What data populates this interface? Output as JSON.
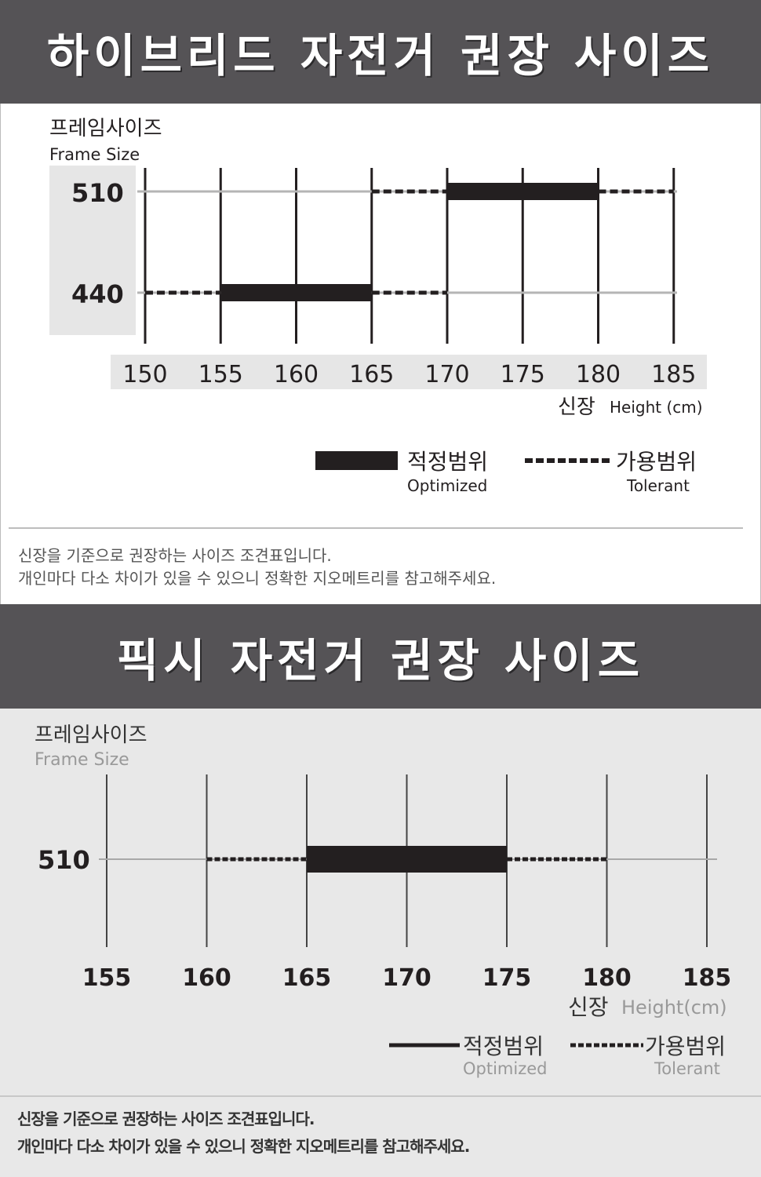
{
  "sections": [
    {
      "title": "하이브리드 자전거 권장 사이즈",
      "notes": [
        "신장을 기준으로 권장하는 사이즈 조견표입니다.",
        "개인마다 다소 차이가 있을 수 있으니 정확한 지오메트리를 참고해주세요."
      ]
    },
    {
      "title": "픽시 자전거 권장 사이즈",
      "notes": [
        "신장을 기준으로 권장하는 사이즈 조견표입니다.",
        "개인마다 다소 차이가 있을 수 있으니 정확한 지오메트리를 참고해주세요."
      ]
    }
  ],
  "chart_data": [
    {
      "type": "bar",
      "ylabel_ko": "프레임사이즈",
      "ylabel_en": "Frame Size",
      "xlabel_ko": "신장",
      "xlabel_en": "Height (cm)",
      "x_ticks": [
        150,
        155,
        160,
        165,
        170,
        175,
        180,
        185
      ],
      "xlim": [
        150,
        185
      ],
      "grid": true,
      "legend": {
        "placement": "bottom-right",
        "optimized_ko": "적정범위",
        "optimized_en": "Optimized",
        "tolerant_ko": "가용범위",
        "tolerant_en": "Tolerant"
      },
      "rows": [
        {
          "frame": "510",
          "optimized": [
            170,
            180
          ],
          "tolerant": [
            165,
            185
          ]
        },
        {
          "frame": "440",
          "optimized": [
            155,
            165
          ],
          "tolerant": [
            150,
            170
          ]
        }
      ],
      "colors": {
        "bar": "#231f20",
        "label_box": "#e6e6e6",
        "axis_box": "#e6e6e6"
      }
    },
    {
      "type": "bar",
      "ylabel_ko": "프레임사이즈",
      "ylabel_en": "Frame Size",
      "xlabel_ko": "신장",
      "xlabel_en": "Height(cm)",
      "x_ticks": [
        155,
        160,
        165,
        170,
        175,
        180,
        185
      ],
      "xlim": [
        155,
        185
      ],
      "grid": true,
      "legend": {
        "placement": "bottom-right",
        "optimized_ko": "적정범위",
        "optimized_en": "Optimized",
        "tolerant_ko": "가용범위",
        "tolerant_en": "Tolerant"
      },
      "rows": [
        {
          "frame": "510",
          "optimized": [
            165,
            175
          ],
          "tolerant": [
            160,
            180
          ]
        }
      ],
      "colors": {
        "bar": "#231f20",
        "panel_bg": "#e8e8e8"
      }
    }
  ]
}
